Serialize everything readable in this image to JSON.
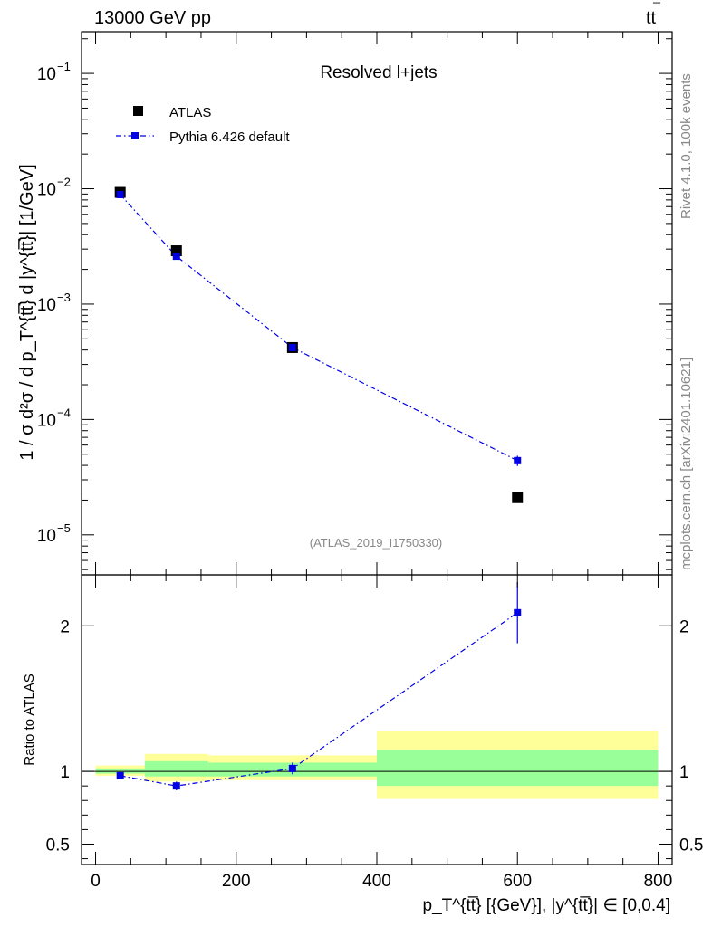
{
  "header": {
    "left": "13000 GeV pp",
    "right_main": "tt",
    "right_bar": "̅"
  },
  "side": {
    "rivet": "Rivet 4.1.0,  100k events",
    "mcplots": "mcplots.cern.ch [arXiv:2401.10621]"
  },
  "chart_data": [
    {
      "type": "scatter",
      "panel": "main",
      "title": "Resolved l+jets",
      "watermark": "(ATLAS_2019_I1750330)",
      "ylabel": "1 / σ d²σ / d p_T^{tt̅} d |y^{tt̅}| [1/GeV]",
      "yscale": "log",
      "xlim": [
        -20,
        820
      ],
      "ylim": [
        4.5e-06,
        0.23
      ],
      "ytick_labels": [
        {
          "value": 0.1,
          "base": "10",
          "exp": "−1"
        },
        {
          "value": 0.01,
          "base": "10",
          "exp": "−2"
        },
        {
          "value": 0.001,
          "base": "10",
          "exp": "−3"
        },
        {
          "value": 0.0001,
          "base": "10",
          "exp": "−4"
        },
        {
          "value": 1e-05,
          "base": "10",
          "exp": "−5"
        }
      ],
      "legend": {
        "position": "top-left",
        "entries": [
          "ATLAS",
          "Pythia 6.426 default"
        ]
      },
      "series": [
        {
          "name": "ATLAS",
          "style": "black-square",
          "x": [
            35,
            115,
            280,
            600
          ],
          "y": [
            0.0093,
            0.0029,
            0.00042,
            2.1e-05
          ]
        },
        {
          "name": "Pythia 6.426 default",
          "style": "blue-dashdot",
          "x": [
            35,
            115,
            280,
            600
          ],
          "y": [
            0.0089,
            0.0026,
            0.00042,
            4.4e-05
          ],
          "err_lo": [
            0.0087,
            0.00254,
            0.00041,
            3.95e-05
          ],
          "err_hi": [
            0.0091,
            0.00266,
            0.00043,
            4.85e-05
          ]
        }
      ]
    },
    {
      "type": "line",
      "panel": "ratio",
      "ylabel": "Ratio to ATLAS",
      "xlabel": "p_T^{tt̅} [{GeV}], |y^{tt̅}| ∈ [0,0.4]",
      "xlim": [
        -20,
        820
      ],
      "ylim": [
        0.36,
        2.35
      ],
      "xticks": [
        0,
        200,
        400,
        600,
        800
      ],
      "xtick_labels": [
        "0",
        "200",
        "400",
        "600",
        "800"
      ],
      "yticks": [
        0.5,
        1,
        2
      ],
      "ytick_labels": [
        "0.5",
        "1",
        "2"
      ],
      "bands": [
        {
          "x0": 0,
          "x1": 70,
          "yellow": [
            0.97,
            1.04
          ],
          "green": [
            0.985,
            1.02
          ]
        },
        {
          "x0": 70,
          "x1": 160,
          "yellow": [
            0.93,
            1.12
          ],
          "green": [
            0.965,
            1.07
          ]
        },
        {
          "x0": 160,
          "x1": 400,
          "yellow": [
            0.94,
            1.11
          ],
          "green": [
            0.965,
            1.06
          ]
        },
        {
          "x0": 400,
          "x1": 800,
          "yellow": [
            0.81,
            1.28
          ],
          "green": [
            0.9,
            1.15
          ]
        }
      ],
      "series": [
        {
          "name": "Pythia 6.426 default",
          "x": [
            35,
            115,
            280,
            600
          ],
          "y": [
            0.97,
            0.9,
            1.02,
            2.09
          ],
          "err_lo": [
            0.955,
            0.87,
            0.98,
            1.88
          ],
          "err_hi": [
            0.985,
            0.93,
            1.06,
            2.3
          ]
        }
      ]
    }
  ]
}
